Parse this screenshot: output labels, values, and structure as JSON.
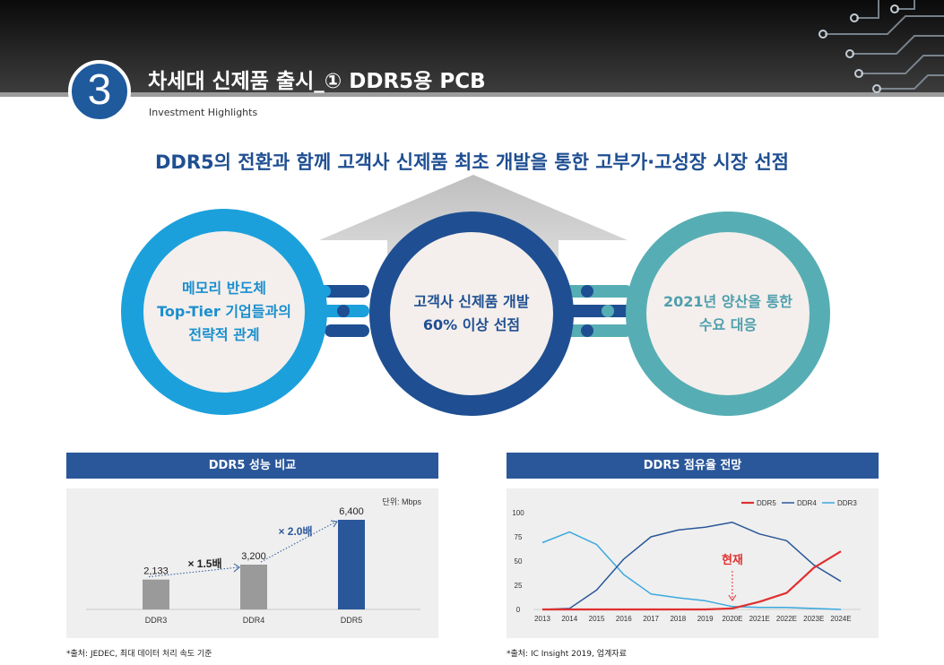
{
  "header": {
    "section_number": "3",
    "title": "차세대 신제품 출시_① DDR5용 PCB",
    "subtitle": "Investment Highlights"
  },
  "headline": "DDR5의 전환과 함께 고객사 신제품 최초 개발을 통한 고부가·고성장 시장 선점",
  "circles": [
    {
      "label": "메모리 반도체\nTop-Tier 기업들과의\n전략적 관계",
      "color": "#1ca0dc"
    },
    {
      "label": "고객사 신제품 개발\n60% 이상 선점",
      "color": "#1f4f92"
    },
    {
      "label": "2021년 양산을 통한\n수요 대응",
      "color": "#56aeb4"
    }
  ],
  "colors": {
    "navy": "#1f4f92",
    "panel_header": "#2a579a",
    "ddr5_red": "#e0302f",
    "ddr4_navy": "#2a579a",
    "ddr3_sky": "#3aa9df",
    "bar_gray": "#9a9a9a"
  },
  "panels": {
    "left": {
      "title": "DDR5 성능 비교",
      "unit": "단위: Mbps",
      "source": "*출처: JEDEC, 최대 데이터 처리 속도 기준",
      "annotations": [
        "× 1.5배",
        "× 2.0배"
      ]
    },
    "right": {
      "title": "DDR5 점유율 전망",
      "current_label": "현재",
      "source": "*출처: IC Insight 2019, 업계자료"
    }
  },
  "chart_data": [
    {
      "type": "bar",
      "categories": [
        "DDR3",
        "DDR4",
        "DDR5"
      ],
      "values": [
        2133,
        3200,
        6400
      ],
      "value_labels": [
        "2,133",
        "3,200",
        "6,400"
      ],
      "title": "DDR5 성능 비교",
      "unit": "단위: Mbps",
      "ylim": [
        0,
        6400
      ],
      "grid": false
    },
    {
      "type": "line",
      "title": "DDR5 점유율 전망",
      "x": [
        "2013",
        "2014",
        "2015",
        "2016",
        "2017",
        "2018",
        "2019",
        "2020E",
        "2021E",
        "2022E",
        "2023E",
        "2024E"
      ],
      "yticks": [
        "0",
        "25",
        "50",
        "75",
        "100"
      ],
      "ylim": [
        0,
        100
      ],
      "legend": "top-right",
      "grid": false,
      "series": [
        {
          "name": "DDR5",
          "color": "#e0302f",
          "values": [
            0,
            0,
            0,
            0,
            0,
            0,
            0,
            1,
            8,
            17,
            43,
            60
          ]
        },
        {
          "name": "DDR4",
          "color": "#2a579a",
          "values": [
            0,
            1,
            20,
            52,
            75,
            82,
            85,
            90,
            78,
            71,
            46,
            29
          ]
        },
        {
          "name": "DDR3",
          "color": "#3aa9df",
          "values": [
            69,
            80,
            67,
            36,
            16,
            12,
            9,
            3,
            2,
            2,
            1,
            0
          ]
        }
      ]
    }
  ]
}
